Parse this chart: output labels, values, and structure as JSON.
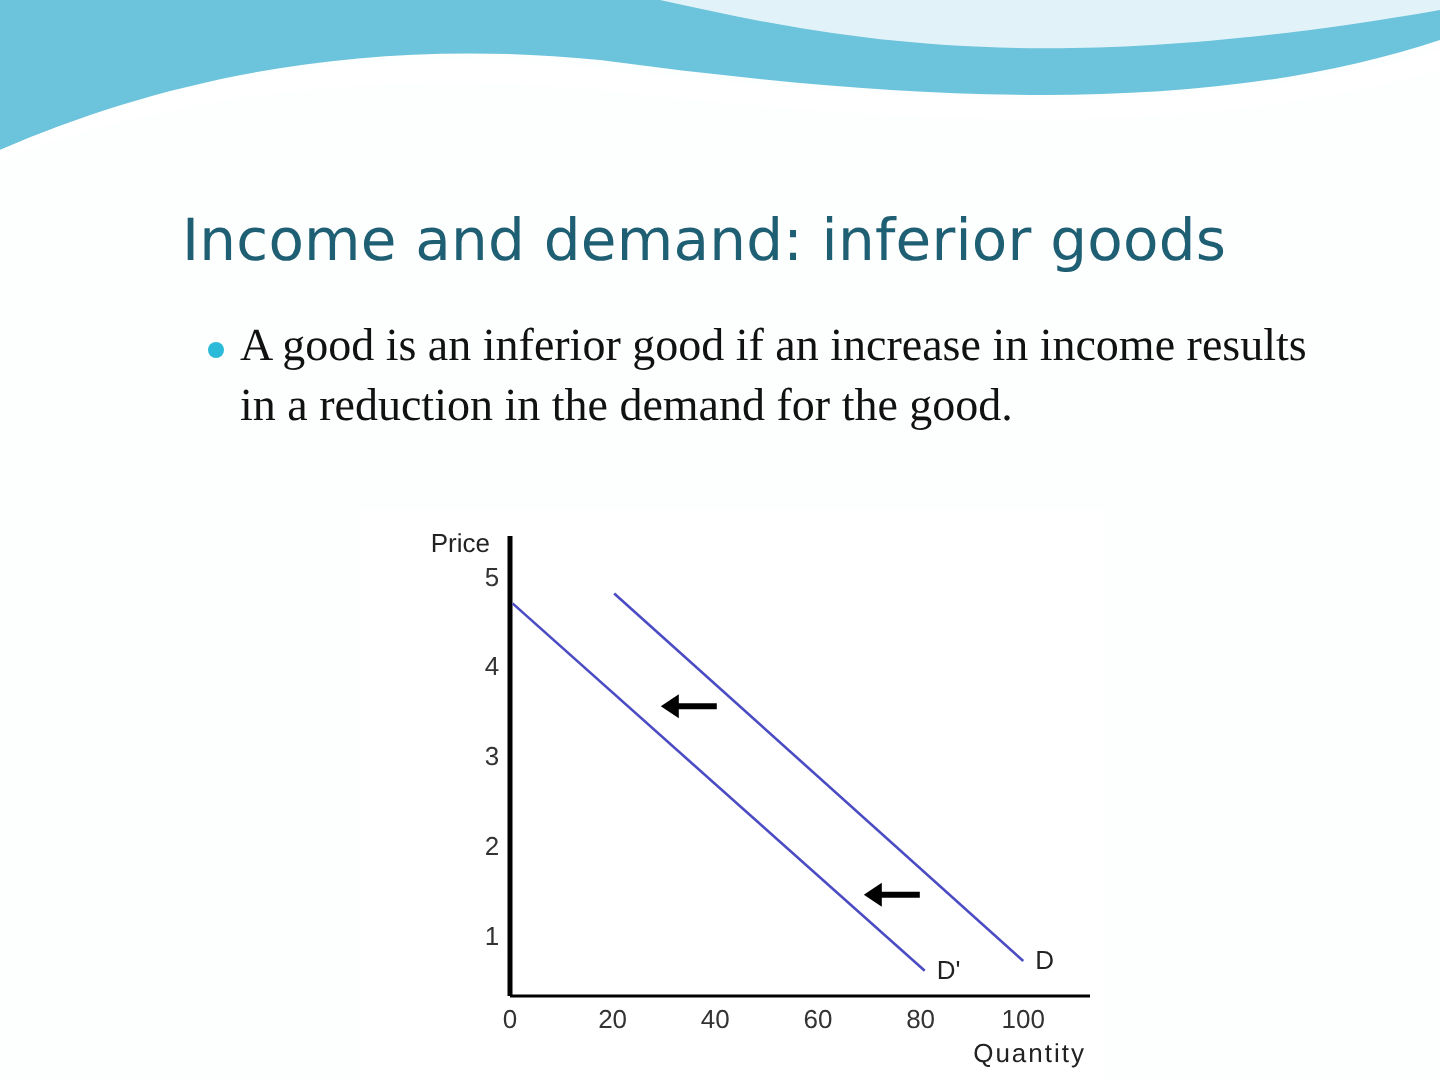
{
  "chart_data": {
    "type": "line",
    "title": "Income and demand: inferior goods",
    "subtitle": "A good is an inferior good if an increase in income results in a reduction in the demand for the good.",
    "xlabel": "Quantity",
    "ylabel": "Price",
    "xlim": [
      0,
      113
    ],
    "ylim": [
      0.33,
      5.45
    ],
    "xticks": [
      0,
      20,
      40,
      60,
      80,
      100
    ],
    "yticks": [
      1,
      2,
      3,
      4,
      5
    ],
    "grid": false,
    "legend": false,
    "marker": "none",
    "line_style": "solid",
    "series": [
      {
        "name": "D",
        "color": "#4b4bc4",
        "x": [
          20.3,
          100
        ],
        "values": [
          4.81,
          0.72
        ]
      },
      {
        "name": "D'",
        "color": "#4b4bc4",
        "x": [
          0.5,
          80.8
        ],
        "values": [
          4.7,
          0.61
        ]
      }
    ]
  }
}
